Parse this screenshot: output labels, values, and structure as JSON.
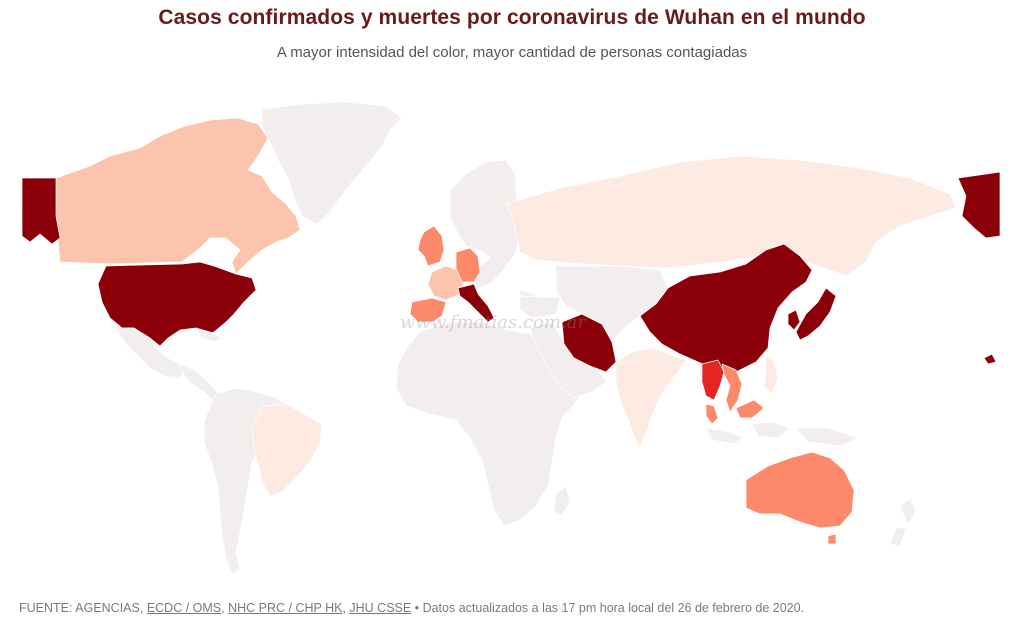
{
  "header": {
    "title": "Casos confirmados y muertes por coronavirus de Wuhan en el mundo",
    "subtitle": "A mayor intensidad del color, mayor cantidad de personas contagiadas"
  },
  "watermark": "www.fmatias.com.ar",
  "footer": {
    "lead": "FUENTE: AGENCIAS, ",
    "sources": [
      "ECDC / OMS",
      "NHC PRC / CHP HK",
      "JHU CSSE"
    ],
    "sep": ", ",
    "bullet": " • ",
    "updated": "Datos actualizados a las 17 pm hora local del 26 de febrero de 2020."
  },
  "colors": {
    "level_0": "#f3eeee",
    "level_1": "#fdebe3",
    "level_2": "#fcc4ac",
    "level_3": "#fc8a6a",
    "level_4": "#e32620",
    "level_5": "#8b0008"
  },
  "countries": [
    {
      "name": "Canada",
      "level": 2
    },
    {
      "name": "United States",
      "level": 5
    },
    {
      "name": "Alaska",
      "level": 5
    },
    {
      "name": "Greenland",
      "level": 0
    },
    {
      "name": "Mexico",
      "level": 0
    },
    {
      "name": "Central America",
      "level": 0
    },
    {
      "name": "Brazil",
      "level": 1
    },
    {
      "name": "South America",
      "level": 0
    },
    {
      "name": "United Kingdom",
      "level": 3
    },
    {
      "name": "Spain",
      "level": 3
    },
    {
      "name": "France",
      "level": 2
    },
    {
      "name": "Germany",
      "level": 3
    },
    {
      "name": "Italy",
      "level": 5
    },
    {
      "name": "Europe",
      "level": 0
    },
    {
      "name": "Russia",
      "level": 1
    },
    {
      "name": "Africa",
      "level": 0
    },
    {
      "name": "Iran",
      "level": 5
    },
    {
      "name": "Middle East",
      "level": 0
    },
    {
      "name": "India",
      "level": 1
    },
    {
      "name": "Central Asia",
      "level": 0
    },
    {
      "name": "China",
      "level": 5
    },
    {
      "name": "South Korea",
      "level": 5
    },
    {
      "name": "Japan",
      "level": 5
    },
    {
      "name": "Thailand",
      "level": 4
    },
    {
      "name": "Vietnam",
      "level": 3
    },
    {
      "name": "Malaysia",
      "level": 3
    },
    {
      "name": "Indonesia",
      "level": 0
    },
    {
      "name": "Philippines",
      "level": 1
    },
    {
      "name": "Australia",
      "level": 3
    },
    {
      "name": "New Zealand",
      "level": 0
    }
  ]
}
